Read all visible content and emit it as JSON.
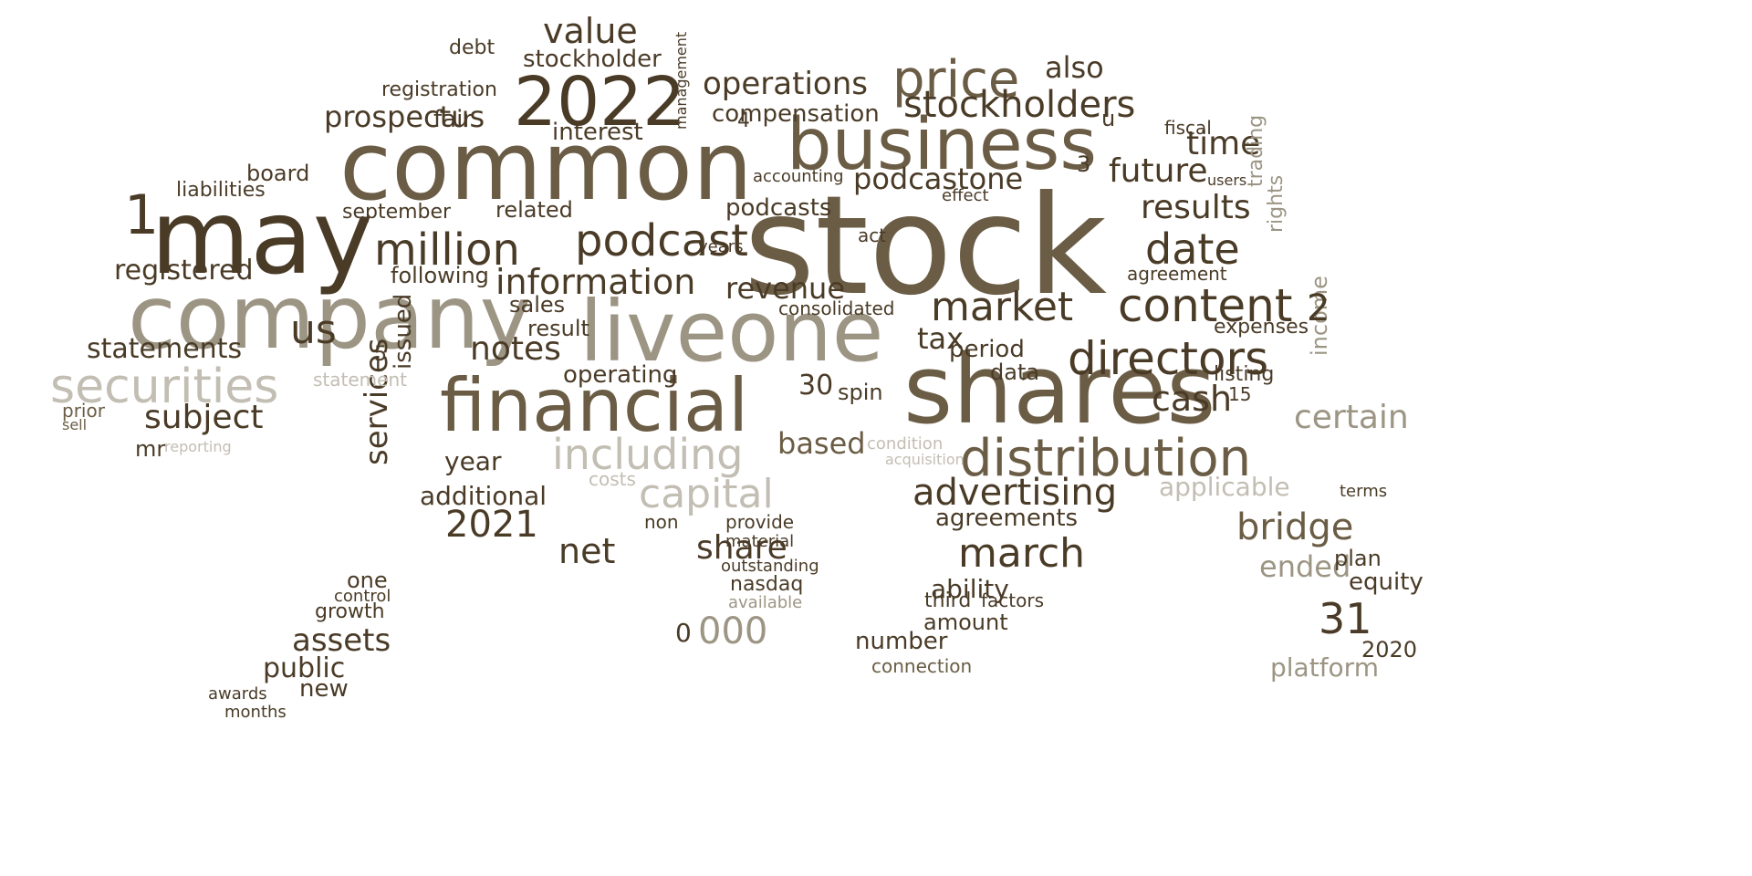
{
  "colors": {
    "dark": "#4a3b27",
    "medium": "#6b5d45",
    "light": "#9c9584",
    "pale": "#c3beb3"
  },
  "words": [
    "stock",
    "common",
    "may",
    "company",
    "shares",
    "business",
    "liveone",
    "financial",
    "2022",
    "securities",
    "distribution",
    "price",
    "million",
    "podcast",
    "content",
    "directors",
    "market",
    "stockholders",
    "date",
    "including",
    "podcastone",
    "information",
    "us",
    "value",
    "notes",
    "capital",
    "operations",
    "advertising",
    "revenue",
    "prospectus",
    "bridge",
    "registered",
    "statements",
    "subject",
    "results",
    "cash",
    "certain",
    "future",
    "time",
    "march",
    "2021",
    "net",
    "assets",
    "public",
    "share",
    "31",
    "000",
    "stockholder",
    "compensation",
    "interest",
    "ended",
    "also",
    "operating",
    "year",
    "additional",
    "services",
    "podcasts",
    "applicable",
    "tax",
    "based",
    "30",
    "period",
    "agreements",
    "ability",
    "issued",
    "amount",
    "number",
    "board",
    "liabilities",
    "september",
    "related",
    "following",
    "sales",
    "result",
    "consolidated",
    "spin",
    "data",
    "registration",
    "fair",
    "debt",
    "mr",
    "prior",
    "sell",
    "growth",
    "control",
    "one",
    "new",
    "platform",
    "2020",
    "equity",
    "plan",
    "income",
    "trading",
    "rights",
    "statement",
    "reporting",
    "condition",
    "acquisition",
    "costs",
    "non",
    "provide",
    "material",
    "outstanding",
    "nasdaq",
    "available",
    "awards",
    "months",
    "connection",
    "third",
    "factors",
    "agreement",
    "expenses",
    "terms",
    "listing",
    "15",
    "management",
    "accounting",
    "act",
    "years",
    "effect",
    "fiscal",
    "users",
    "2",
    "1",
    "0",
    "5",
    "3",
    "4",
    "u"
  ]
}
